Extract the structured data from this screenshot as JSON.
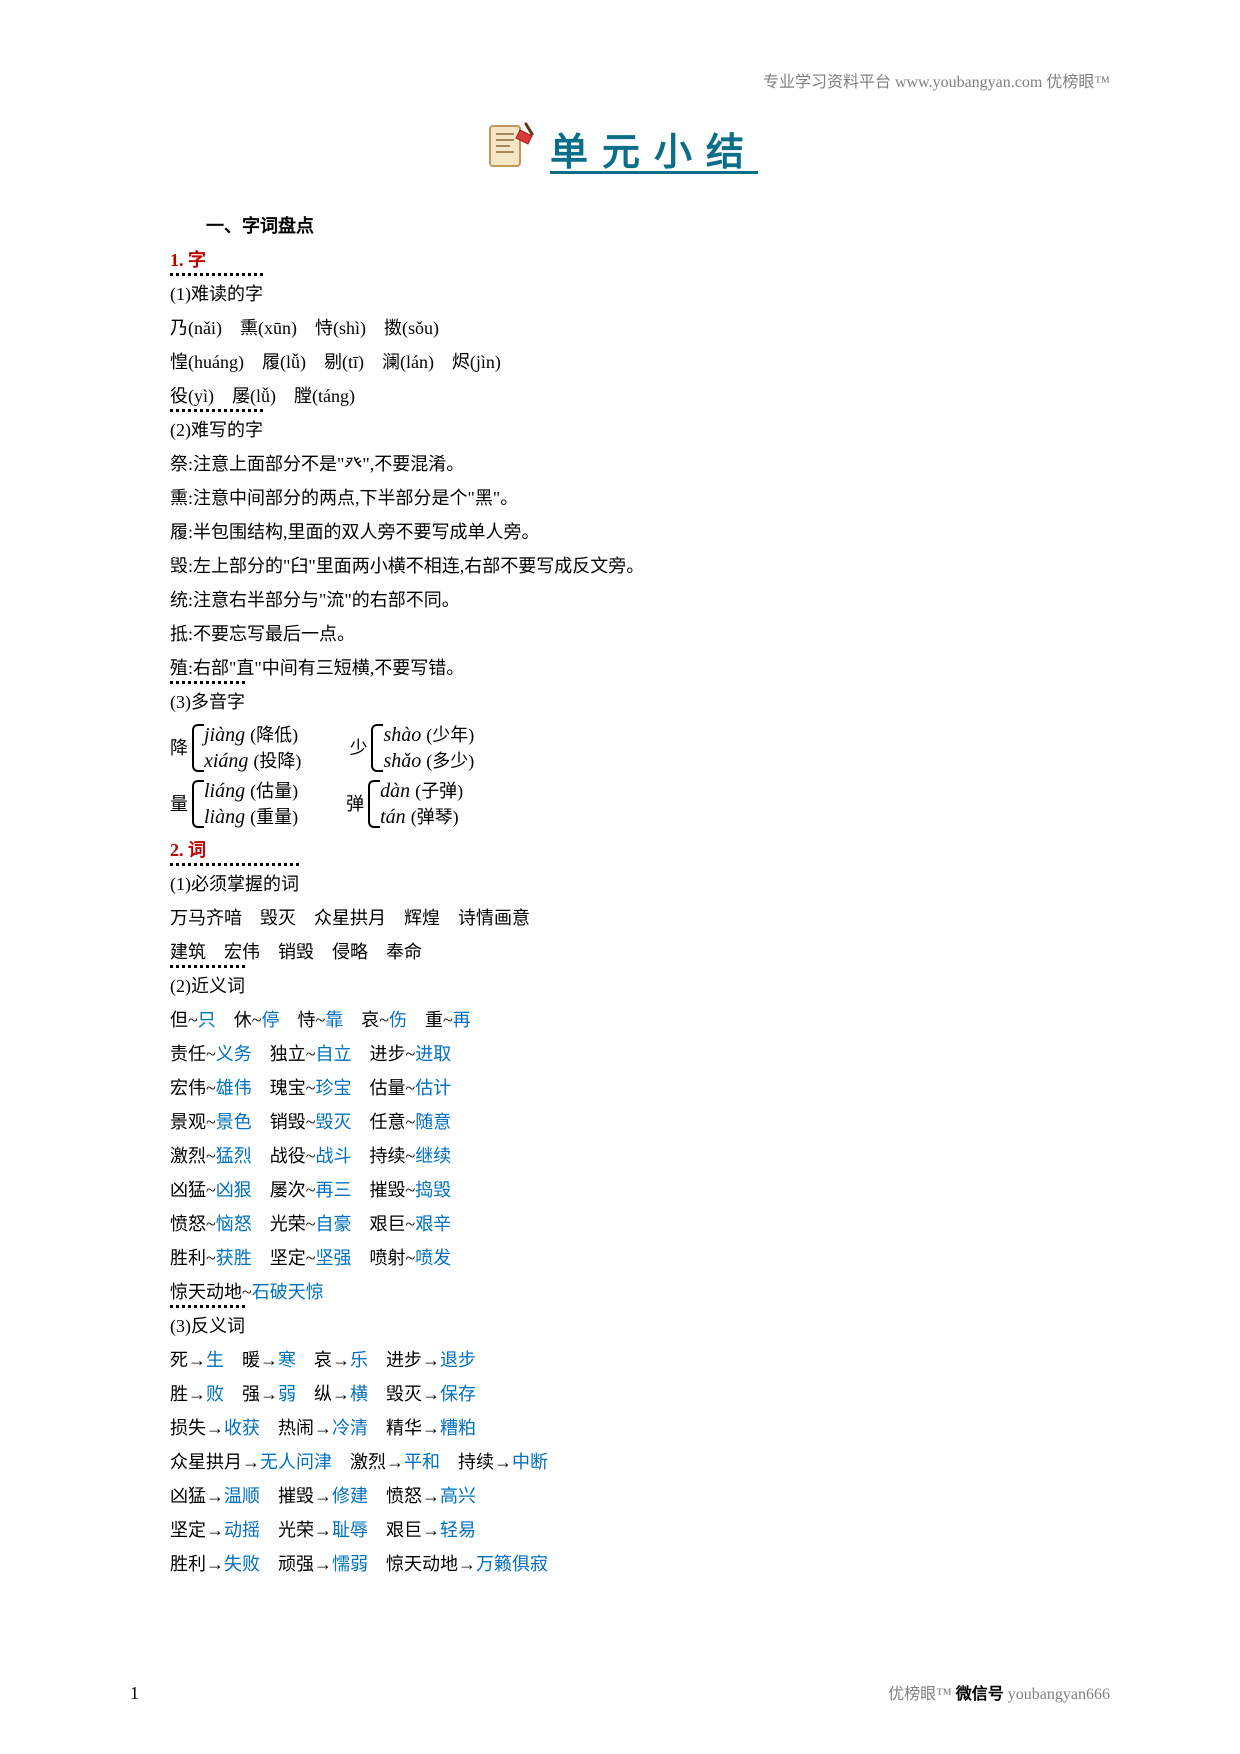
{
  "header": {
    "note": "专业学习资料平台 www.youbangyan.com 优榜眼™"
  },
  "banner": {
    "title": "单元小结"
  },
  "sec1": {
    "heading": "一、字词盘点"
  },
  "s1": {
    "title": "1. 字",
    "sub1": "(1)难读的字",
    "l1": "乃(nǎi)　熏(xūn)　恃(shì)　擞(sǒu)",
    "l2": "惶(huáng)　履(lǚ)　剔(tī)　澜(lán)　烬(jìn)",
    "l3": "役(yì)　屡(lǚ)　膛(táng)",
    "sub2": "(2)难写的字",
    "w1": "祭:注意上面部分不是\"癶\",不要混淆。",
    "w2": "熏:注意中间部分的两点,下半部分是个\"黑\"。",
    "w3": "履:半包围结构,里面的双人旁不要写成单人旁。",
    "w4": "毁:左上部分的\"臼\"里面两小横不相连,右部不要写成反文旁。",
    "w5": "统:注意右半部分与\"流\"的右部不同。",
    "w6": "抵:不要忘写最后一点。",
    "w7": "殖:右部\"直\"中间有三短横,不要写错。",
    "sub3": "(3)多音字",
    "poly": {
      "p1c": "降",
      "p1a": "jiàng",
      "p1ah": "(降低)",
      "p1b": "xiáng",
      "p1bh": "(投降)",
      "p2c": "少",
      "p2a": "shào",
      "p2ah": "(少年)",
      "p2b": "shǎo",
      "p2bh": "(多少)",
      "p3c": "量",
      "p3a": "liáng",
      "p3ah": "(估量)",
      "p3b": "liàng",
      "p3bh": "(重量)",
      "p4c": "弹",
      "p4a": "dàn",
      "p4ah": "(子弹)",
      "p4b": "tán",
      "p4bh": "(弹琴)"
    }
  },
  "s2": {
    "title": "2. 词",
    "sub1": "(1)必须掌握的词",
    "m1": "万马齐喑　毁灭　众星拱月　辉煌　诗情画意",
    "m2": "建筑　宏伟　销毁　侵略　奉命",
    "sub2": "(2)近义词",
    "syn": [
      [
        "但~",
        "只",
        "　休~",
        "停",
        "　恃~",
        "靠",
        "　哀~",
        "伤",
        "　重~",
        "再"
      ],
      [
        "责任~",
        "义务",
        "　独立~",
        "自立",
        "　进步~",
        "进取"
      ],
      [
        "宏伟~",
        "雄伟",
        "　瑰宝~",
        "珍宝",
        "　估量~",
        "估计"
      ],
      [
        "景观~",
        "景色",
        "　销毁~",
        "毁灭",
        "　任意~",
        "随意"
      ],
      [
        "激烈~",
        "猛烈",
        "　战役~",
        "战斗",
        "　持续~",
        "继续"
      ],
      [
        "凶猛~",
        "凶狠",
        "　屡次~",
        "再三",
        "　摧毁~",
        "捣毁"
      ],
      [
        "愤怒~",
        "恼怒",
        "　光荣~",
        "自豪",
        "　艰巨~",
        "艰辛"
      ],
      [
        "胜利~",
        "获胜",
        "　坚定~",
        "坚强",
        "　喷射~",
        "喷发"
      ],
      [
        "惊天动地~",
        "石破天惊"
      ]
    ],
    "sub3": "(3)反义词",
    "ant": [
      [
        "死→",
        "生",
        "　暖→",
        "寒",
        "　哀→",
        "乐",
        "　进步→",
        "退步"
      ],
      [
        "胜→",
        "败",
        "　强→",
        "弱",
        "　纵→",
        "横",
        "　毁灭→",
        "保存"
      ],
      [
        "损失→",
        "收获",
        "　热闹→",
        "冷清",
        "　精华→",
        "糟粕"
      ],
      [
        "众星拱月→",
        "无人问津",
        "　激烈→",
        "平和",
        "　持续→",
        "中断"
      ],
      [
        "凶猛→",
        "温顺",
        "　摧毁→",
        "修建",
        "　愤怒→",
        "高兴"
      ],
      [
        "坚定→",
        "动摇",
        "　光荣→",
        "耻辱",
        "　艰巨→",
        "轻易"
      ],
      [
        "胜利→",
        "失败",
        "　顽强→",
        "懦弱",
        "　惊天动地→",
        "万籁俱寂"
      ]
    ]
  },
  "footer": {
    "page": "1",
    "rightPlain": "优榜眼™ ",
    "rightBold": "微信号",
    "rightId": " youbangyan666"
  }
}
